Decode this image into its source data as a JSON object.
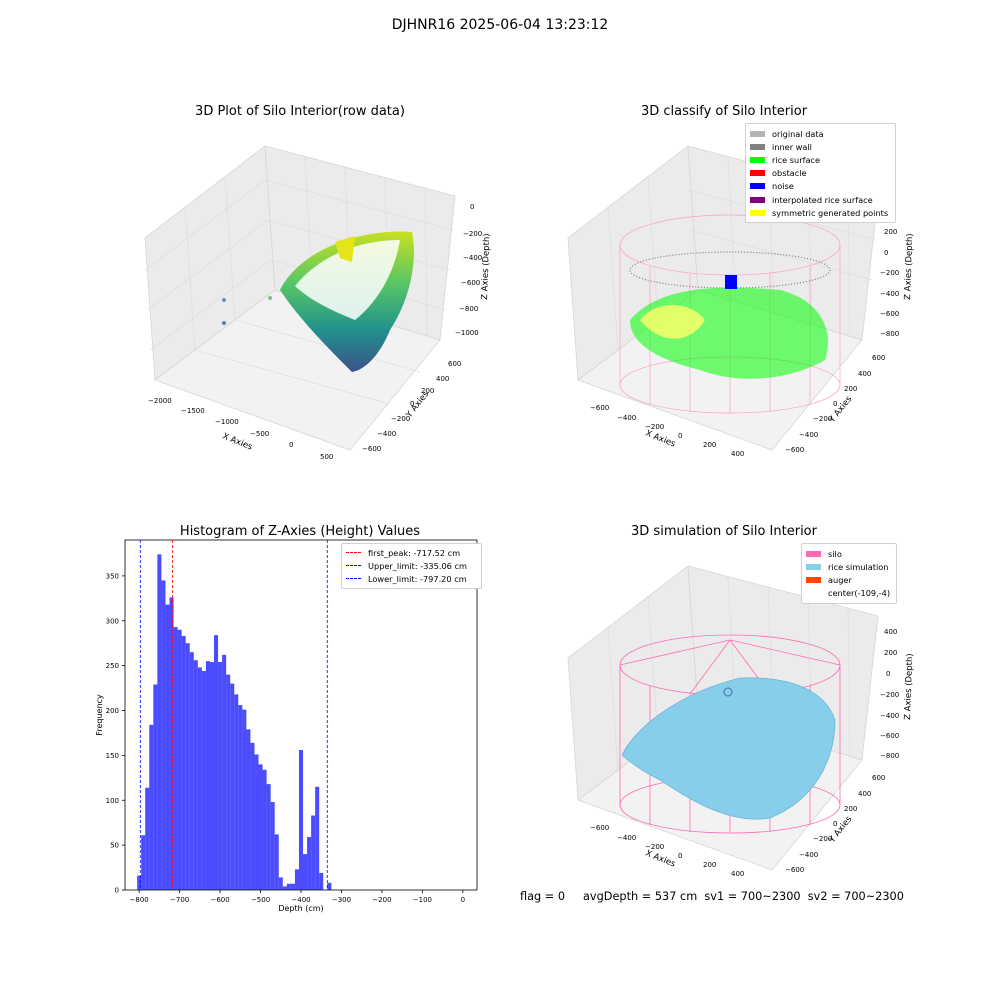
{
  "suptitle": "DJHNR16 2025-06-04 13:23:12",
  "footer": "flag = 0     avgDepth = 537 cm  sv1 = 700~2300  sv2 = 700~2300",
  "panel1": {
    "title": "3D Plot of Silo Interior(row data)",
    "xlabel": "X Axies",
    "ylabel": "Y Axies",
    "zlabel": "Z Axies (Depth)",
    "xticks": [
      "−2000",
      "−1500",
      "−1000",
      "−500",
      "0",
      "500"
    ],
    "yticks": [
      "600",
      "400",
      "200",
      "0",
      "−200",
      "−400",
      "−600"
    ],
    "zticks": [
      "0",
      "−200",
      "−400",
      "−600",
      "−800",
      "−1000"
    ]
  },
  "panel2": {
    "title": "3D classify of Silo Interior",
    "xlabel": "X Axies",
    "ylabel": "Y Axies",
    "zlabel": "Z Axies (Depth)",
    "xticks": [
      "−600",
      "−400",
      "−200",
      "0",
      "200",
      "400"
    ],
    "yticks": [
      "600",
      "400",
      "200",
      "0",
      "−200",
      "−400",
      "−600"
    ],
    "zticks": [
      "200",
      "0",
      "−200",
      "−400",
      "−600",
      "−800"
    ],
    "legend": [
      {
        "label": "original data",
        "color": "#b3b3b3"
      },
      {
        "label": "inner wall",
        "color": "#808080"
      },
      {
        "label": "rice surface",
        "color": "#00ff00"
      },
      {
        "label": "obstacle",
        "color": "#ff0000"
      },
      {
        "label": "noise",
        "color": "#0000ff"
      },
      {
        "label": "interpolated rice surface",
        "color": "#800080"
      },
      {
        "label": "symmetric generated points",
        "color": "#ffff00"
      }
    ]
  },
  "panel4": {
    "title": "3D simulation of Silo Interior",
    "xlabel": "X Axies",
    "ylabel": "Y Axies",
    "zlabel": "Z Axies (Depth)",
    "xticks": [
      "−600",
      "−400",
      "−200",
      "0",
      "200",
      "400"
    ],
    "yticks": [
      "600",
      "400",
      "200",
      "0",
      "−200",
      "−400",
      "−600"
    ],
    "zticks": [
      "400",
      "200",
      "0",
      "−200",
      "−400",
      "−600",
      "−800"
    ],
    "legend": [
      {
        "label": "silo",
        "color": "#ff69b4"
      },
      {
        "label": "rice simulation",
        "color": "#87ceeb"
      },
      {
        "label": "auger",
        "color": "#ff4500"
      },
      {
        "label": "center(-109,-4)",
        "color": ""
      }
    ]
  },
  "chart_data": {
    "type": "bar",
    "title": "Histogram of Z-Axies (Height) Values",
    "xlabel": "Depth (cm)",
    "ylabel": "Frequency",
    "xlim": [
      -835,
      35
    ],
    "ylim": [
      0,
      390
    ],
    "bin_start": -805,
    "bin_width": 10,
    "values": [
      16,
      61,
      114,
      184,
      229,
      374,
      345,
      318,
      326,
      293,
      290,
      283,
      275,
      265,
      256,
      248,
      244,
      255,
      254,
      284,
      254,
      262,
      240,
      230,
      218,
      206,
      201,
      179,
      164,
      151,
      140,
      134,
      118,
      98,
      62,
      14,
      4,
      7,
      7,
      23,
      156,
      40,
      59,
      83,
      115,
      19,
      0,
      8
    ],
    "bar_color": "#0000ff",
    "xticks": [
      -800,
      -700,
      -600,
      -500,
      -400,
      -300,
      -200,
      -100,
      0
    ],
    "yticks": [
      0,
      50,
      100,
      150,
      200,
      250,
      300,
      350
    ],
    "vlines": [
      {
        "x": -717.52,
        "label": "first_peak: -717.52 cm",
        "color": "#ff0000"
      },
      {
        "x": -335.06,
        "label": "Upper_limit: -335.06 cm",
        "color": "#0000ff"
      },
      {
        "x": -797.2,
        "label": "Lower_limit: -797.20 cm",
        "color": "#0000ff"
      }
    ]
  }
}
